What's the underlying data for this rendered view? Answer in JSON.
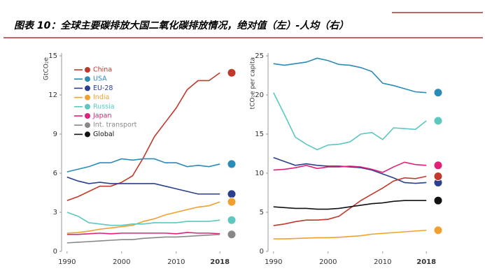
{
  "header": {
    "title": "图表 10：全球主要碳排放大国二氧化碳排放情况，绝对值（左）-人均（右）"
  },
  "chart_data": [
    {
      "type": "line",
      "ylabel": "GtCO₂e",
      "legend": "upper left",
      "x": [
        1990,
        1992,
        1994,
        1996,
        1998,
        2000,
        2002,
        2004,
        2006,
        2008,
        2010,
        2012,
        2014,
        2016,
        2018
      ],
      "xlim": [
        1989,
        2019
      ],
      "xticks": [
        1990,
        2000,
        2010,
        2018
      ],
      "ylim": [
        0,
        15
      ],
      "yticks": [
        0,
        3,
        6,
        9,
        12,
        15
      ],
      "series": [
        {
          "name": "China",
          "color": "#c0392b",
          "values": [
            3.9,
            4.2,
            4.6,
            5.0,
            5.0,
            5.3,
            5.8,
            7.2,
            8.8,
            9.9,
            11.0,
            12.4,
            13.1,
            13.1,
            13.7
          ]
        },
        {
          "name": "USA",
          "color": "#2a8bb8",
          "values": [
            6.1,
            6.3,
            6.5,
            6.8,
            6.8,
            7.1,
            7.0,
            7.1,
            7.1,
            6.8,
            6.8,
            6.5,
            6.6,
            6.5,
            6.7
          ]
        },
        {
          "name": "EU-28",
          "color": "#2a3f8f",
          "values": [
            5.7,
            5.4,
            5.2,
            5.3,
            5.2,
            5.2,
            5.2,
            5.2,
            5.2,
            5.0,
            4.8,
            4.6,
            4.4,
            4.4,
            4.4
          ]
        },
        {
          "name": "India",
          "color": "#f0a030",
          "values": [
            1.4,
            1.45,
            1.55,
            1.7,
            1.8,
            1.9,
            2.0,
            2.3,
            2.5,
            2.8,
            3.0,
            3.2,
            3.4,
            3.5,
            3.8
          ]
        },
        {
          "name": "Russia",
          "color": "#5cc8c0",
          "values": [
            3.0,
            2.7,
            2.2,
            2.1,
            2.0,
            2.0,
            2.1,
            2.1,
            2.2,
            2.2,
            2.2,
            2.3,
            2.3,
            2.3,
            2.4
          ]
        },
        {
          "name": "Japan",
          "color": "#e0207a",
          "values": [
            1.3,
            1.3,
            1.35,
            1.4,
            1.35,
            1.4,
            1.4,
            1.4,
            1.4,
            1.4,
            1.35,
            1.45,
            1.4,
            1.4,
            1.35
          ]
        },
        {
          "name": "Int. transport",
          "color": "#888888",
          "values": [
            0.65,
            0.7,
            0.75,
            0.8,
            0.85,
            0.9,
            0.9,
            1.0,
            1.05,
            1.1,
            1.1,
            1.15,
            1.2,
            1.25,
            1.3
          ]
        },
        {
          "name": "Global",
          "color": "#111111",
          "values": [
            null,
            null,
            null,
            null,
            null,
            null,
            null,
            null,
            null,
            null,
            null,
            null,
            null,
            null,
            null
          ]
        }
      ]
    },
    {
      "type": "line",
      "ylabel": "tCO₂e per capita",
      "x": [
        1990,
        1992,
        1994,
        1996,
        1998,
        2000,
        2002,
        2004,
        2006,
        2008,
        2010,
        2012,
        2014,
        2016,
        2018
      ],
      "xlim": [
        1989,
        2019
      ],
      "xticks": [
        1990,
        2000,
        2010,
        2018
      ],
      "ylim": [
        0,
        25
      ],
      "yticks": [
        0,
        5,
        10,
        15,
        20,
        25
      ],
      "series": [
        {
          "color": "#2a8bb8",
          "values": [
            24.0,
            23.8,
            24.0,
            24.2,
            24.7,
            24.4,
            23.9,
            23.8,
            23.5,
            23.0,
            21.5,
            21.2,
            20.8,
            20.4,
            20.3
          ]
        },
        {
          "color": "#5cc8c0",
          "values": [
            20.3,
            17.5,
            14.6,
            13.7,
            13.0,
            13.6,
            13.7,
            14.0,
            15.0,
            15.2,
            14.3,
            15.8,
            15.7,
            15.6,
            16.7
          ]
        },
        {
          "color": "#2a3f8f",
          "values": [
            12.0,
            11.5,
            11.0,
            11.2,
            11.0,
            10.9,
            10.9,
            10.8,
            10.7,
            10.4,
            9.9,
            9.4,
            8.8,
            8.7,
            8.8
          ]
        },
        {
          "color": "#e0207a",
          "values": [
            10.4,
            10.5,
            10.7,
            11.0,
            10.6,
            10.8,
            10.8,
            10.9,
            10.8,
            10.5,
            10.1,
            10.8,
            11.4,
            11.1,
            11.0
          ]
        },
        {
          "color": "#c0392b",
          "values": [
            3.3,
            3.5,
            3.8,
            4.0,
            4.0,
            4.1,
            4.5,
            5.5,
            6.5,
            7.3,
            8.1,
            9.0,
            9.4,
            9.3,
            9.6
          ]
        },
        {
          "color": "#111111",
          "values": [
            5.7,
            5.6,
            5.5,
            5.5,
            5.4,
            5.4,
            5.5,
            5.7,
            5.9,
            6.1,
            6.2,
            6.4,
            6.5,
            6.5,
            6.5
          ]
        },
        {
          "color": "#f0a030",
          "values": [
            1.6,
            1.6,
            1.65,
            1.7,
            1.75,
            1.75,
            1.8,
            1.9,
            2.0,
            2.2,
            2.3,
            2.4,
            2.5,
            2.6,
            2.7
          ]
        }
      ]
    }
  ]
}
